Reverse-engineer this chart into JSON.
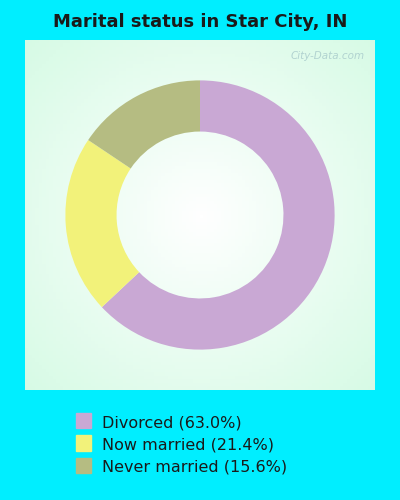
{
  "title": "Marital status in Star City, IN",
  "slices": [
    63.0,
    21.4,
    15.6
  ],
  "labels": [
    "Divorced (63.0%)",
    "Never married (15.6%)",
    "Now married (21.4%)"
  ],
  "legend_colors": [
    "#c9a8d4",
    "#b5bc82",
    "#f2f27a"
  ],
  "slice_colors": [
    "#c9a8d4",
    "#f2f27a",
    "#b5bc82"
  ],
  "background_color": "#00eeff",
  "chart_bg": "#c8eedd",
  "title_fontsize": 13,
  "legend_fontsize": 11.5,
  "watermark": "City-Data.com",
  "donut_width": 0.38,
  "startangle": 90
}
